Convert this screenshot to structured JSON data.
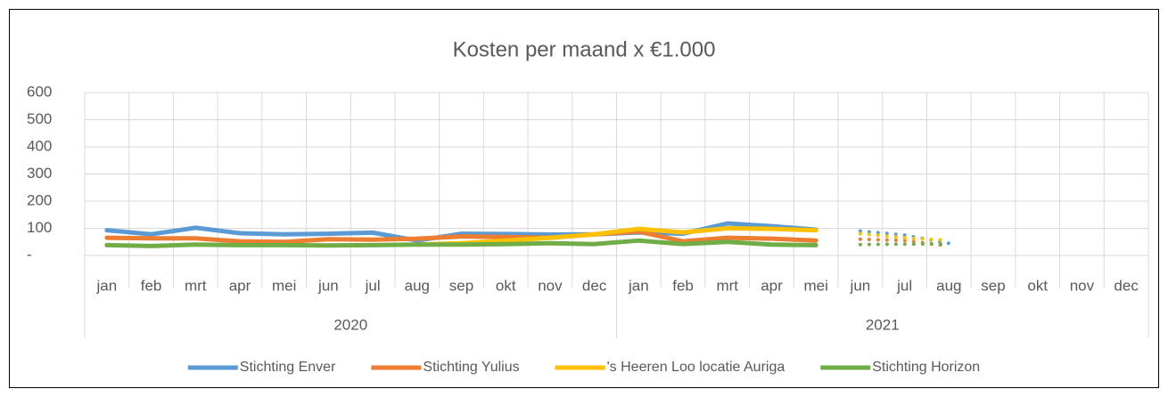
{
  "chart_data": {
    "type": "line",
    "title": "Kosten per maand x €1.000",
    "categories": [
      "jan",
      "feb",
      "mrt",
      "apr",
      "mei",
      "jun",
      "jul",
      "aug",
      "sep",
      "okt",
      "nov",
      "dec",
      "jan",
      "feb",
      "mrt",
      "apr",
      "mei",
      "jun",
      "jul",
      "aug",
      "sep",
      "okt",
      "nov",
      "dec"
    ],
    "groups": [
      {
        "label": "2020",
        "span": 12
      },
      {
        "label": "2021",
        "span": 12
      }
    ],
    "ylim": [
      0,
      600
    ],
    "yticks": [
      {
        "value": 0,
        "label": "-"
      },
      100,
      200,
      300,
      400,
      500,
      600
    ],
    "grid": true,
    "legend": "bottom",
    "series": [
      {
        "name": "Stichting Enver",
        "color": "#5b9bd5",
        "values": [
          93,
          78,
          102,
          82,
          78,
          80,
          84,
          55,
          80,
          79,
          77,
          78,
          85,
          80,
          118,
          108,
          95,
          null,
          null,
          null,
          null,
          null,
          null,
          null
        ],
        "forecast": [
          null,
          null,
          null,
          null,
          null,
          null,
          null,
          null,
          null,
          null,
          null,
          null,
          null,
          null,
          null,
          null,
          null,
          90,
          75,
          45,
          null,
          null,
          null,
          null
        ]
      },
      {
        "name": "Stichting Yulius",
        "color": "#ed7d31",
        "values": [
          65,
          63,
          63,
          52,
          50,
          60,
          58,
          62,
          70,
          68,
          65,
          78,
          88,
          52,
          65,
          62,
          55,
          null,
          null,
          null,
          null,
          null,
          null,
          null
        ],
        "forecast": [
          null,
          null,
          null,
          null,
          null,
          null,
          null,
          null,
          null,
          null,
          null,
          null,
          null,
          null,
          null,
          null,
          null,
          60,
          55,
          35,
          null,
          null,
          null,
          null
        ]
      },
      {
        "name": "'s Heeren Loo locatie Auriga",
        "color": "#ffc000",
        "values": [
          null,
          null,
          null,
          null,
          null,
          null,
          null,
          40,
          45,
          55,
          65,
          78,
          98,
          85,
          100,
          98,
          93,
          null,
          null,
          null,
          null,
          null,
          null,
          null
        ],
        "forecast": [
          null,
          null,
          null,
          null,
          null,
          null,
          null,
          null,
          null,
          null,
          null,
          null,
          null,
          null,
          null,
          null,
          null,
          80,
          65,
          55,
          null,
          null,
          null,
          null
        ]
      },
      {
        "name": "Stichting Horizon",
        "color": "#70ad47",
        "values": [
          38,
          35,
          40,
          38,
          38,
          37,
          38,
          40,
          40,
          42,
          45,
          42,
          55,
          42,
          50,
          40,
          38,
          null,
          null,
          null,
          null,
          null,
          null,
          null
        ],
        "forecast": [
          null,
          null,
          null,
          null,
          null,
          null,
          null,
          null,
          null,
          null,
          null,
          null,
          null,
          null,
          null,
          null,
          null,
          40,
          42,
          42,
          null,
          null,
          null,
          null
        ]
      }
    ]
  }
}
